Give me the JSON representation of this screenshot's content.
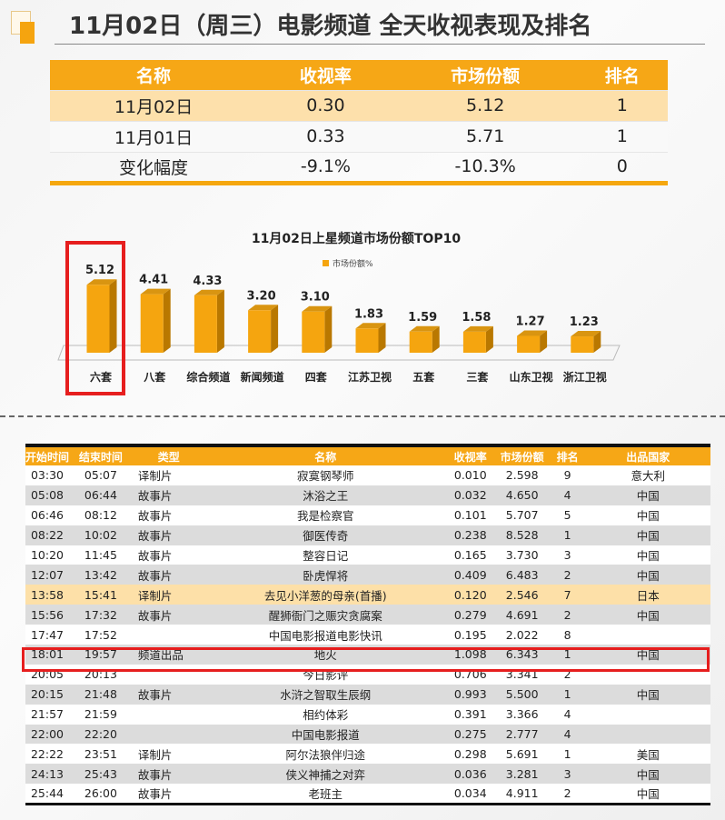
{
  "header": {
    "title": "11月02日（周三）电影频道 全天收视表现及排名"
  },
  "summary": {
    "columns": [
      "名称",
      "收视率",
      "市场份额",
      "排名"
    ],
    "rows": [
      [
        "11月02日",
        "0.30",
        "5.12",
        "1"
      ],
      [
        "11月01日",
        "0.33",
        "5.71",
        "1"
      ],
      [
        "变化幅度",
        "-9.1%",
        "-10.3%",
        "0"
      ]
    ]
  },
  "colors": {
    "accent": "#f6a716",
    "highlight": "#fde0ab",
    "box": "#e61e1e"
  },
  "chart_data": {
    "type": "bar",
    "title": "11月02日上星频道市场份额TOP10",
    "legend": "市场份额%",
    "legend_position": "top",
    "categories": [
      "六套",
      "八套",
      "综合频道",
      "新闻频道",
      "四套",
      "江苏卫视",
      "五套",
      "三套",
      "山东卫视",
      "浙江卫视"
    ],
    "series": [
      {
        "name": "市场份额%",
        "values": [
          5.12,
          4.41,
          4.33,
          3.2,
          3.1,
          1.83,
          1.59,
          1.58,
          1.27,
          1.23
        ]
      }
    ],
    "data_labels": [
      "5.12",
      "4.41",
      "4.33",
      "3.20",
      "3.10",
      "1.83",
      "1.59",
      "1.58",
      "1.27",
      "1.23"
    ],
    "highlighted": "六套",
    "grid": false
  },
  "programs": {
    "columns": [
      "开始时间",
      "结束时间",
      "类型",
      "名称",
      "收视率",
      "市场份额",
      "排名",
      "出品国家"
    ],
    "rows": [
      [
        "03:30",
        "05:07",
        "译制片",
        "寂寞钢琴师",
        "0.010",
        "2.598",
        "9",
        "意大利"
      ],
      [
        "05:08",
        "06:44",
        "故事片",
        "沐浴之王",
        "0.032",
        "4.650",
        "4",
        "中国"
      ],
      [
        "06:46",
        "08:12",
        "故事片",
        "我是检察官",
        "0.101",
        "5.707",
        "5",
        "中国"
      ],
      [
        "08:22",
        "10:02",
        "故事片",
        "御医传奇",
        "0.238",
        "8.528",
        "1",
        "中国"
      ],
      [
        "10:20",
        "11:45",
        "故事片",
        "整容日记",
        "0.165",
        "3.730",
        "3",
        "中国"
      ],
      [
        "12:07",
        "13:42",
        "故事片",
        "卧虎悍将",
        "0.409",
        "6.483",
        "2",
        "中国"
      ],
      [
        "13:58",
        "15:41",
        "译制片",
        "去见小洋葱的母亲(首播)",
        "0.120",
        "2.546",
        "7",
        "日本"
      ],
      [
        "15:56",
        "17:32",
        "故事片",
        "醒狮衙门之赈灾贪腐案",
        "0.279",
        "4.691",
        "2",
        "中国"
      ],
      [
        "17:47",
        "17:52",
        "",
        "中国电影报道电影快讯",
        "0.195",
        "2.022",
        "8",
        ""
      ],
      [
        "18:01",
        "19:57",
        "频道出品",
        "地火",
        "1.098",
        "6.343",
        "1",
        "中国"
      ],
      [
        "20:05",
        "20:13",
        "",
        "今日影评",
        "0.706",
        "3.341",
        "2",
        ""
      ],
      [
        "20:15",
        "21:48",
        "故事片",
        "水浒之智取生辰纲",
        "0.993",
        "5.500",
        "1",
        "中国"
      ],
      [
        "21:57",
        "21:59",
        "",
        "相约体彩",
        "0.391",
        "3.366",
        "4",
        ""
      ],
      [
        "22:00",
        "22:20",
        "",
        "中国电影报道",
        "0.275",
        "2.777",
        "4",
        ""
      ],
      [
        "22:22",
        "23:51",
        "译制片",
        "阿尔法狼伴归途",
        "0.298",
        "5.691",
        "1",
        "美国"
      ],
      [
        "24:13",
        "25:43",
        "故事片",
        "侠义神捕之对弈",
        "0.036",
        "3.281",
        "3",
        "中国"
      ],
      [
        "25:44",
        "26:00",
        "故事片",
        "老班主",
        "0.034",
        "4.911",
        "2",
        "中国"
      ]
    ],
    "highlighted_row": "去见小洋葱的母亲(首播)",
    "boxed_row": "地火"
  }
}
